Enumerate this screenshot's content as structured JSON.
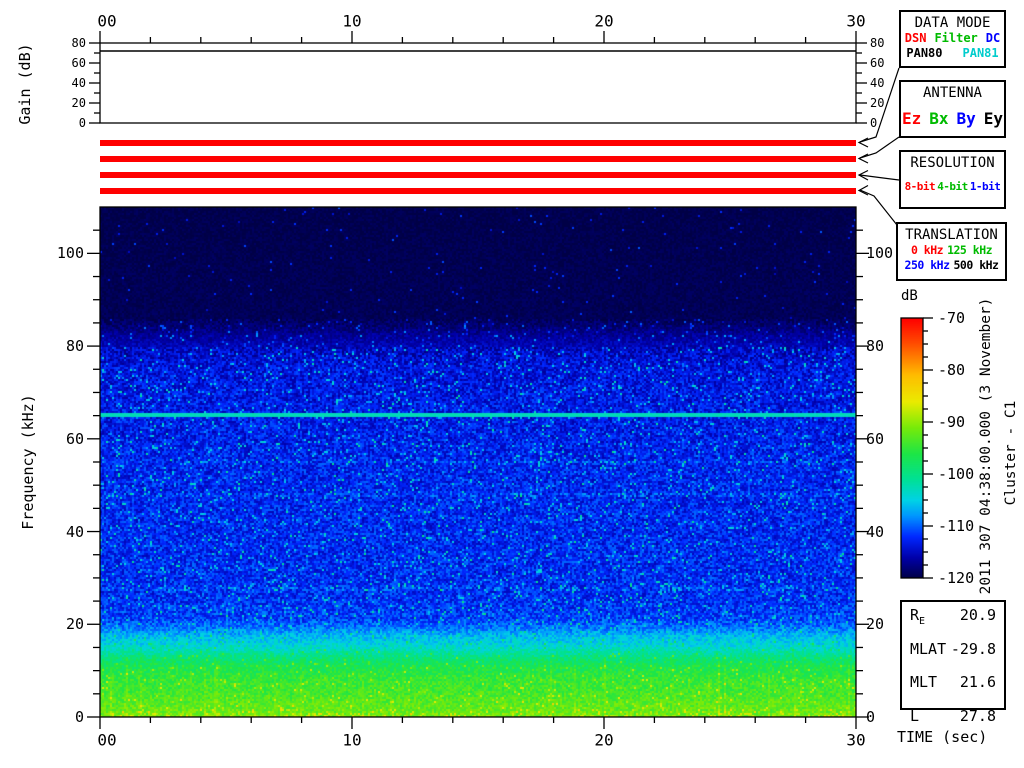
{
  "labels": {
    "gain_axis": "Gain (dB)",
    "freq_axis": "Frequency (kHz)",
    "time_axis": "TIME (sec)"
  },
  "time_axis": {
    "range": [
      0,
      30
    ],
    "major_ticks": [
      0,
      10,
      20,
      30
    ],
    "tick_labels": [
      "00",
      "10",
      "20",
      "30"
    ],
    "minor_step": 2
  },
  "gain_panel": {
    "range": [
      0,
      80
    ],
    "major_ticks": [
      0,
      20,
      40,
      60,
      80
    ],
    "minor_ticks": [
      10,
      30,
      50,
      70
    ],
    "trace_level_db": 72
  },
  "freq_axis": {
    "range": [
      0,
      110
    ],
    "major_ticks": [
      0,
      20,
      40,
      60,
      80,
      100
    ],
    "minor_step": 5
  },
  "colorbar": {
    "label": "dB",
    "range": [
      -70,
      -120
    ],
    "major_ticks": [
      -70,
      -80,
      -90,
      -100,
      -110,
      -120
    ],
    "minor_step": 2.5
  },
  "side_annotations": {
    "timestamp": "2011 307 04:38:00.000 (3 November)",
    "spacecraft": "Cluster - C1"
  },
  "status_bars": {
    "color": "#ff0000",
    "bars": [
      {
        "name": "data-mode-bar",
        "state": "DSN"
      },
      {
        "name": "antenna-bar",
        "state": "Ez"
      },
      {
        "name": "resolution-bar",
        "state": "8-bit"
      },
      {
        "name": "translation-bar",
        "state": "0 kHz"
      }
    ]
  },
  "panels": {
    "data_mode": {
      "title": "DATA MODE",
      "rows": [
        [
          {
            "label": "DSN",
            "color": "#ff0000"
          },
          {
            "label": "Filter",
            "color": "#00bb00"
          },
          {
            "label": "DC",
            "color": "#0000ff"
          }
        ],
        [
          {
            "label": "PAN80",
            "color": "#000000"
          },
          {
            "label": "PAN81",
            "color": "#00cccc"
          }
        ]
      ]
    },
    "antenna": {
      "title": "ANTENNA",
      "rows": [
        [
          {
            "label": "Ez",
            "color": "#ff0000"
          },
          {
            "label": "Bx",
            "color": "#00bb00"
          },
          {
            "label": "By",
            "color": "#0000ff"
          },
          {
            "label": "Ey",
            "color": "#000000"
          }
        ]
      ]
    },
    "resolution": {
      "title": "RESOLUTION",
      "rows": [
        [
          {
            "label": "8-bit",
            "color": "#ff0000"
          },
          {
            "label": "4-bit",
            "color": "#00bb00"
          },
          {
            "label": "1-bit",
            "color": "#0000ff"
          }
        ]
      ]
    },
    "translation": {
      "title": "TRANSLATION",
      "rows": [
        [
          {
            "label": "0 kHz",
            "color": "#ff0000"
          },
          {
            "label": "125 kHz",
            "color": "#00bb00"
          }
        ],
        [
          {
            "label": "250 kHz",
            "color": "#0000ff"
          },
          {
            "label": "500 kHz",
            "color": "#000000"
          }
        ]
      ]
    }
  },
  "ephemeris": {
    "rows": [
      {
        "label": "R",
        "sub": "E",
        "value": "20.9"
      },
      {
        "label": "MLAT",
        "sub": "",
        "value": "-29.8"
      },
      {
        "label": "MLT",
        "sub": "",
        "value": "21.6"
      },
      {
        "label": "L",
        "sub": "",
        "value": "27.8"
      }
    ]
  },
  "chart_data": {
    "type": "heatmap",
    "title": "Cluster C1 wideband spectrogram, 2011-307 04:38:00.000 (3 November)",
    "x": {
      "label": "TIME (sec)",
      "range": [
        0,
        30
      ],
      "major_ticks": [
        0,
        10,
        20,
        30
      ],
      "minor_step": 2
    },
    "y": {
      "label": "Frequency (kHz)",
      "range": [
        0,
        110
      ],
      "major_ticks": [
        0,
        20,
        40,
        60,
        80,
        100
      ],
      "minor_step": 5
    },
    "z": {
      "label": "dB",
      "range": [
        -120,
        -70
      ],
      "colormap": "rainbow",
      "tick_step": 10
    },
    "gain_trace": {
      "label": "Gain (dB)",
      "range": [
        0,
        80
      ],
      "constant_value_db": 72
    },
    "status": {
      "data_mode": "DSN",
      "antenna": "Ez",
      "resolution": "8-bit",
      "translation": "0 kHz"
    },
    "features": [
      {
        "name": "background",
        "frequency_khz": [
          86,
          110
        ],
        "level_db": -120
      },
      {
        "name": "upper-cutoff-transition",
        "frequency_khz": [
          80,
          86
        ],
        "level_db": -117
      },
      {
        "name": "mid-band-speckled-noise",
        "frequency_khz": [
          20,
          80
        ],
        "level_db": -113
      },
      {
        "name": "narrowband-emission-line",
        "frequency_khz": 65,
        "level_db": -103,
        "extent": "0-30 s continuous"
      },
      {
        "name": "faint-interference-lines",
        "frequencies_khz": [
          27.5,
          48,
          55
        ],
        "level_db": -110
      },
      {
        "name": "cyan-transition-band",
        "frequency_khz": [
          13,
          20
        ],
        "level_db": -106
      },
      {
        "name": "low-frequency-broadband",
        "frequency_khz": [
          0,
          13
        ],
        "level_db": [
          -97,
          -91
        ]
      },
      {
        "name": "bottom-edge-bursts",
        "frequency_khz": [
          0,
          2
        ],
        "level_db": -84,
        "description": "yellow-orange bursts along bottom edge"
      }
    ],
    "ephemeris": {
      "R_E": 20.9,
      "MLAT": -29.8,
      "MLT": 21.6,
      "L": 27.8
    }
  }
}
